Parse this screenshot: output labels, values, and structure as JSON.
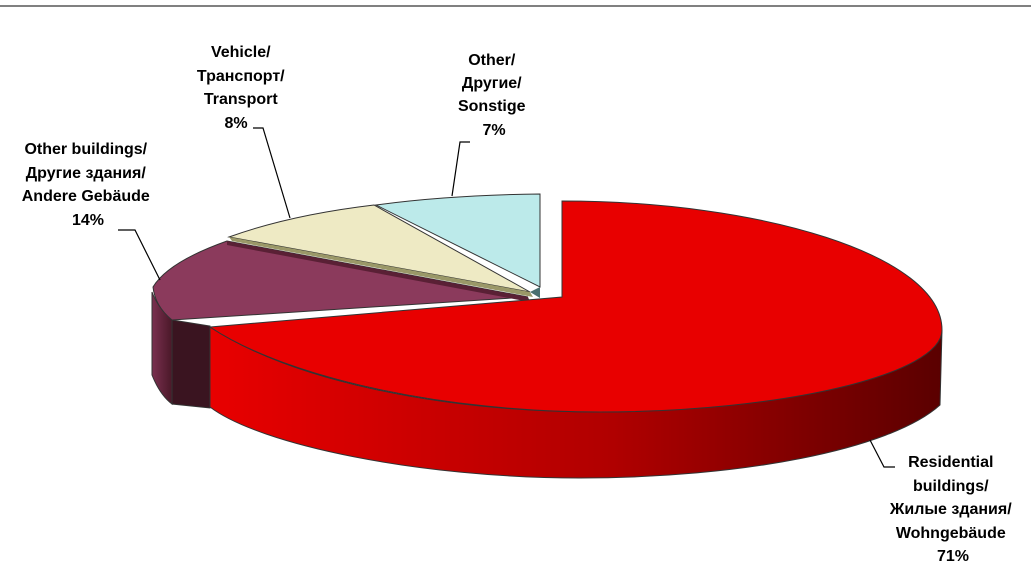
{
  "chart_data": {
    "type": "pie",
    "style": "3d-exploded",
    "slices": [
      {
        "label_lines": [
          "Residential",
          "buildings/",
          "Жилые здания/",
          "Wohngebäude"
        ],
        "percent_label": "71%",
        "value": 71,
        "color": "#E80000"
      },
      {
        "label_lines": [
          "Other buildings/",
          "Другие здания/",
          "Andere Gebäude"
        ],
        "percent_label": "14%",
        "value": 14,
        "color": "#8B3A5C"
      },
      {
        "label_lines": [
          "Vehicle/",
          "Транспорт/",
          "Transport"
        ],
        "percent_label": "8%",
        "value": 8,
        "color": "#EEEAC4"
      },
      {
        "label_lines": [
          "Other/",
          "Другие/",
          "Sonstige"
        ],
        "percent_label": "7%",
        "value": 7,
        "color": "#BCEAEA"
      }
    ]
  }
}
